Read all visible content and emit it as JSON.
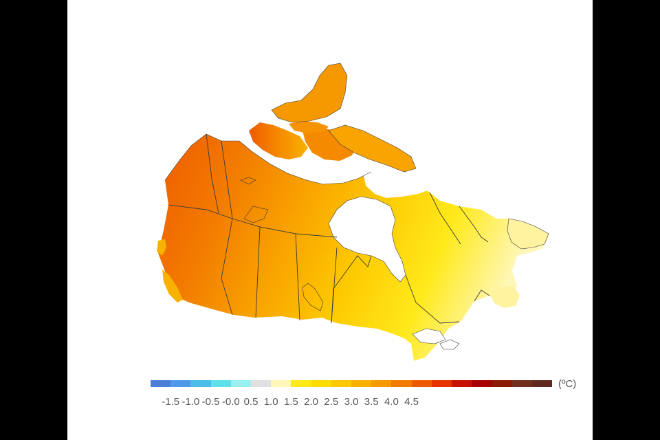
{
  "legend": {
    "unit": "(ºC)",
    "colors": [
      "#4a7fd8",
      "#4f9ae8",
      "#4bbde9",
      "#5fe0ec",
      "#9af0ef",
      "#e0e0e0",
      "#fff7b8",
      "#ffe91a",
      "#fedc00",
      "#fdc800",
      "#f9b100",
      "#f69800",
      "#f27b00",
      "#ee5a00",
      "#e63300",
      "#c81000",
      "#a80000",
      "#8a1a00",
      "#722f20",
      "#5e2a20"
    ],
    "ticks": [
      "-1.5",
      "-1.0",
      "-0.5",
      "-0.0",
      "0.5",
      "1.0",
      "1.5",
      "2.0",
      "2.5",
      "3.0",
      "3.5",
      "4.0",
      "4.5"
    ]
  },
  "map": {
    "colors": {
      "hot_dark": "#e63300",
      "hot": "#f27b00",
      "warm": "#f69800",
      "mid": "#f9b100",
      "cool": "#fdc800",
      "yellow": "#ffe91a",
      "pale": "#fff7b8",
      "water": "#ffffff",
      "border": "#3a3a3a"
    }
  }
}
